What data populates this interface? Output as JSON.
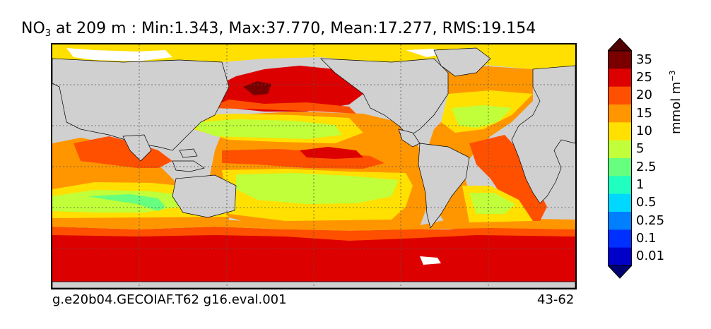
{
  "title": {
    "species_main": "NO",
    "species_sub": "3",
    "rest": " at 209 m : Min:1.343, Max:37.770, Mean:17.277, RMS:19.154"
  },
  "footer": {
    "case_name": "g.e20b04.GECOIAF.T62 g16.eval.001",
    "years": "43-62"
  },
  "colorbar": {
    "unit_main": "mmol m",
    "unit_sup": "−3",
    "levels": [
      {
        "label": "35",
        "color": "#7a0000"
      },
      {
        "label": "25",
        "color": "#dd0000"
      },
      {
        "label": "20",
        "color": "#ff5000"
      },
      {
        "label": "15",
        "color": "#ff9600"
      },
      {
        "label": "10",
        "color": "#ffe000"
      },
      {
        "label": "5",
        "color": "#c0ff3a"
      },
      {
        "label": "2.5",
        "color": "#66ff80"
      },
      {
        "label": "1",
        "color": "#20ffc0"
      },
      {
        "label": "0.5",
        "color": "#00d8ff"
      },
      {
        "label": "0.25",
        "color": "#0080ff"
      },
      {
        "label": "0.1",
        "color": "#0030ff"
      },
      {
        "label": "0.01",
        "color": "#0000c8"
      }
    ],
    "top_extend_color": "#500000",
    "bottom_extend_color": "#000070"
  },
  "map_colors": {
    "land": "#d0d0d0",
    "ice": "#ffffff",
    "grid": "#555555"
  }
}
